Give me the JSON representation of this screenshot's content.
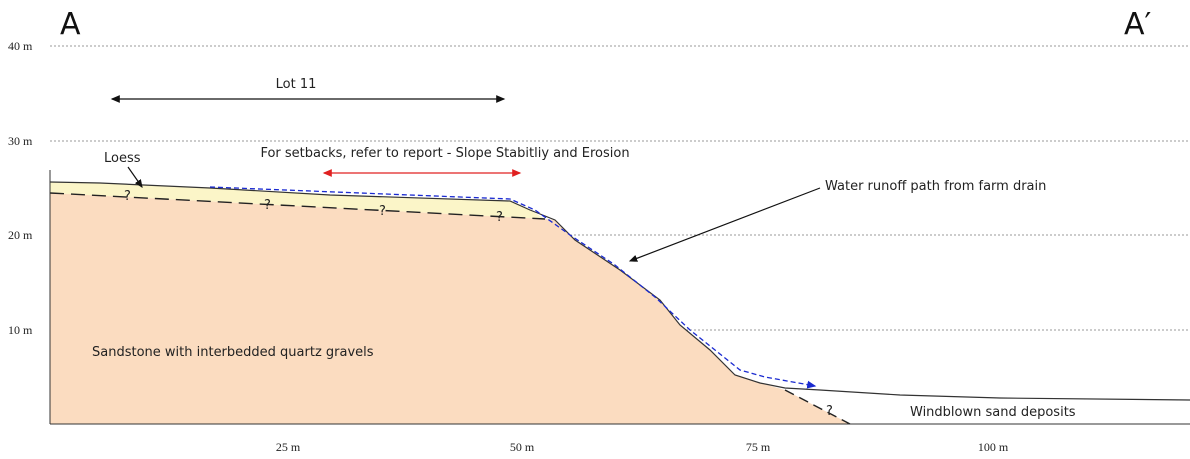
{
  "header": {
    "left_label": "A",
    "right_label": "A′"
  },
  "y_axis": {
    "ticks": [
      "40 m",
      "30 m",
      "20 m",
      "10 m"
    ]
  },
  "x_axis": {
    "ticks": [
      "25 m",
      "50 m",
      "75 m",
      "100 m"
    ]
  },
  "annotations": {
    "lot": "Lot 11",
    "setbacks": "For setbacks, refer to report - Slope Stabitliy and Erosion",
    "loess": "Loess",
    "runoff": "Water runoff path from farm drain",
    "sandstone": "Sandstone with interbedded quartz gravels",
    "windblown": "Windblown sand deposits"
  },
  "uncertain_marks": [
    "?",
    "?",
    "?",
    "?",
    "?"
  ]
}
